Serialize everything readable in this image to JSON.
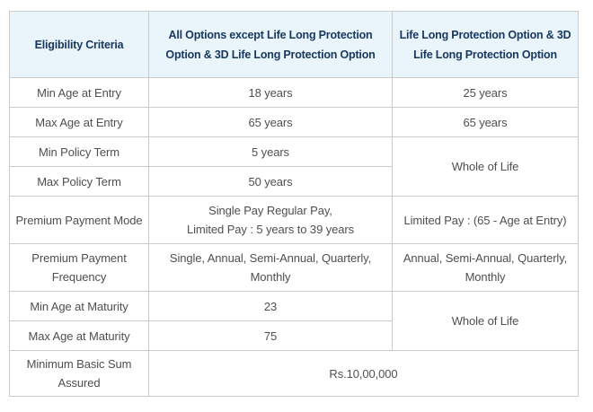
{
  "header": {
    "criteria": "Eligibility Criteria",
    "all_options": "All Options except Life Long Protection Option & 3D Life Long Protection Option",
    "life_long": "Life Long Protection Option & 3D Life Long Protection Option"
  },
  "rows": {
    "min_age_entry": {
      "label": "Min Age at Entry",
      "all": "18 years",
      "lifelong": "25 years"
    },
    "max_age_entry": {
      "label": "Max Age at Entry",
      "all": "65 years",
      "lifelong": "65 years"
    },
    "min_policy_term": {
      "label": "Min Policy Term",
      "all": "5 years"
    },
    "max_policy_term": {
      "label": "Max Policy Term",
      "all": "50 years"
    },
    "policy_term_lifelong": "Whole of Life",
    "premium_payment_mode": {
      "label": "Premium Payment Mode",
      "all": "Single Pay Regular Pay,\nLimited Pay : 5 years to 39 years",
      "lifelong": "Limited Pay : (65 - Age at Entry)"
    },
    "premium_payment_frequency": {
      "label": "Premium Payment Frequency",
      "all": "Single, Annual, Semi-Annual, Quarterly,\nMonthly",
      "lifelong": "Annual, Semi-Annual, Quarterly,\nMonthly"
    },
    "min_age_maturity": {
      "label": "Min Age at Maturity",
      "all": "23"
    },
    "max_age_maturity": {
      "label": "Max Age at Maturity",
      "all": "75"
    },
    "maturity_lifelong": "Whole of Life",
    "min_basic_sum_assured": {
      "label": "Minimum Basic Sum Assured",
      "value": "Rs.10,00,000"
    }
  },
  "colors": {
    "header_bg": "#e9f4fb",
    "header_text": "#17375e",
    "body_text": "#4f4f4f",
    "border": "#cbcbcb",
    "page_bg": "#ffffff"
  }
}
